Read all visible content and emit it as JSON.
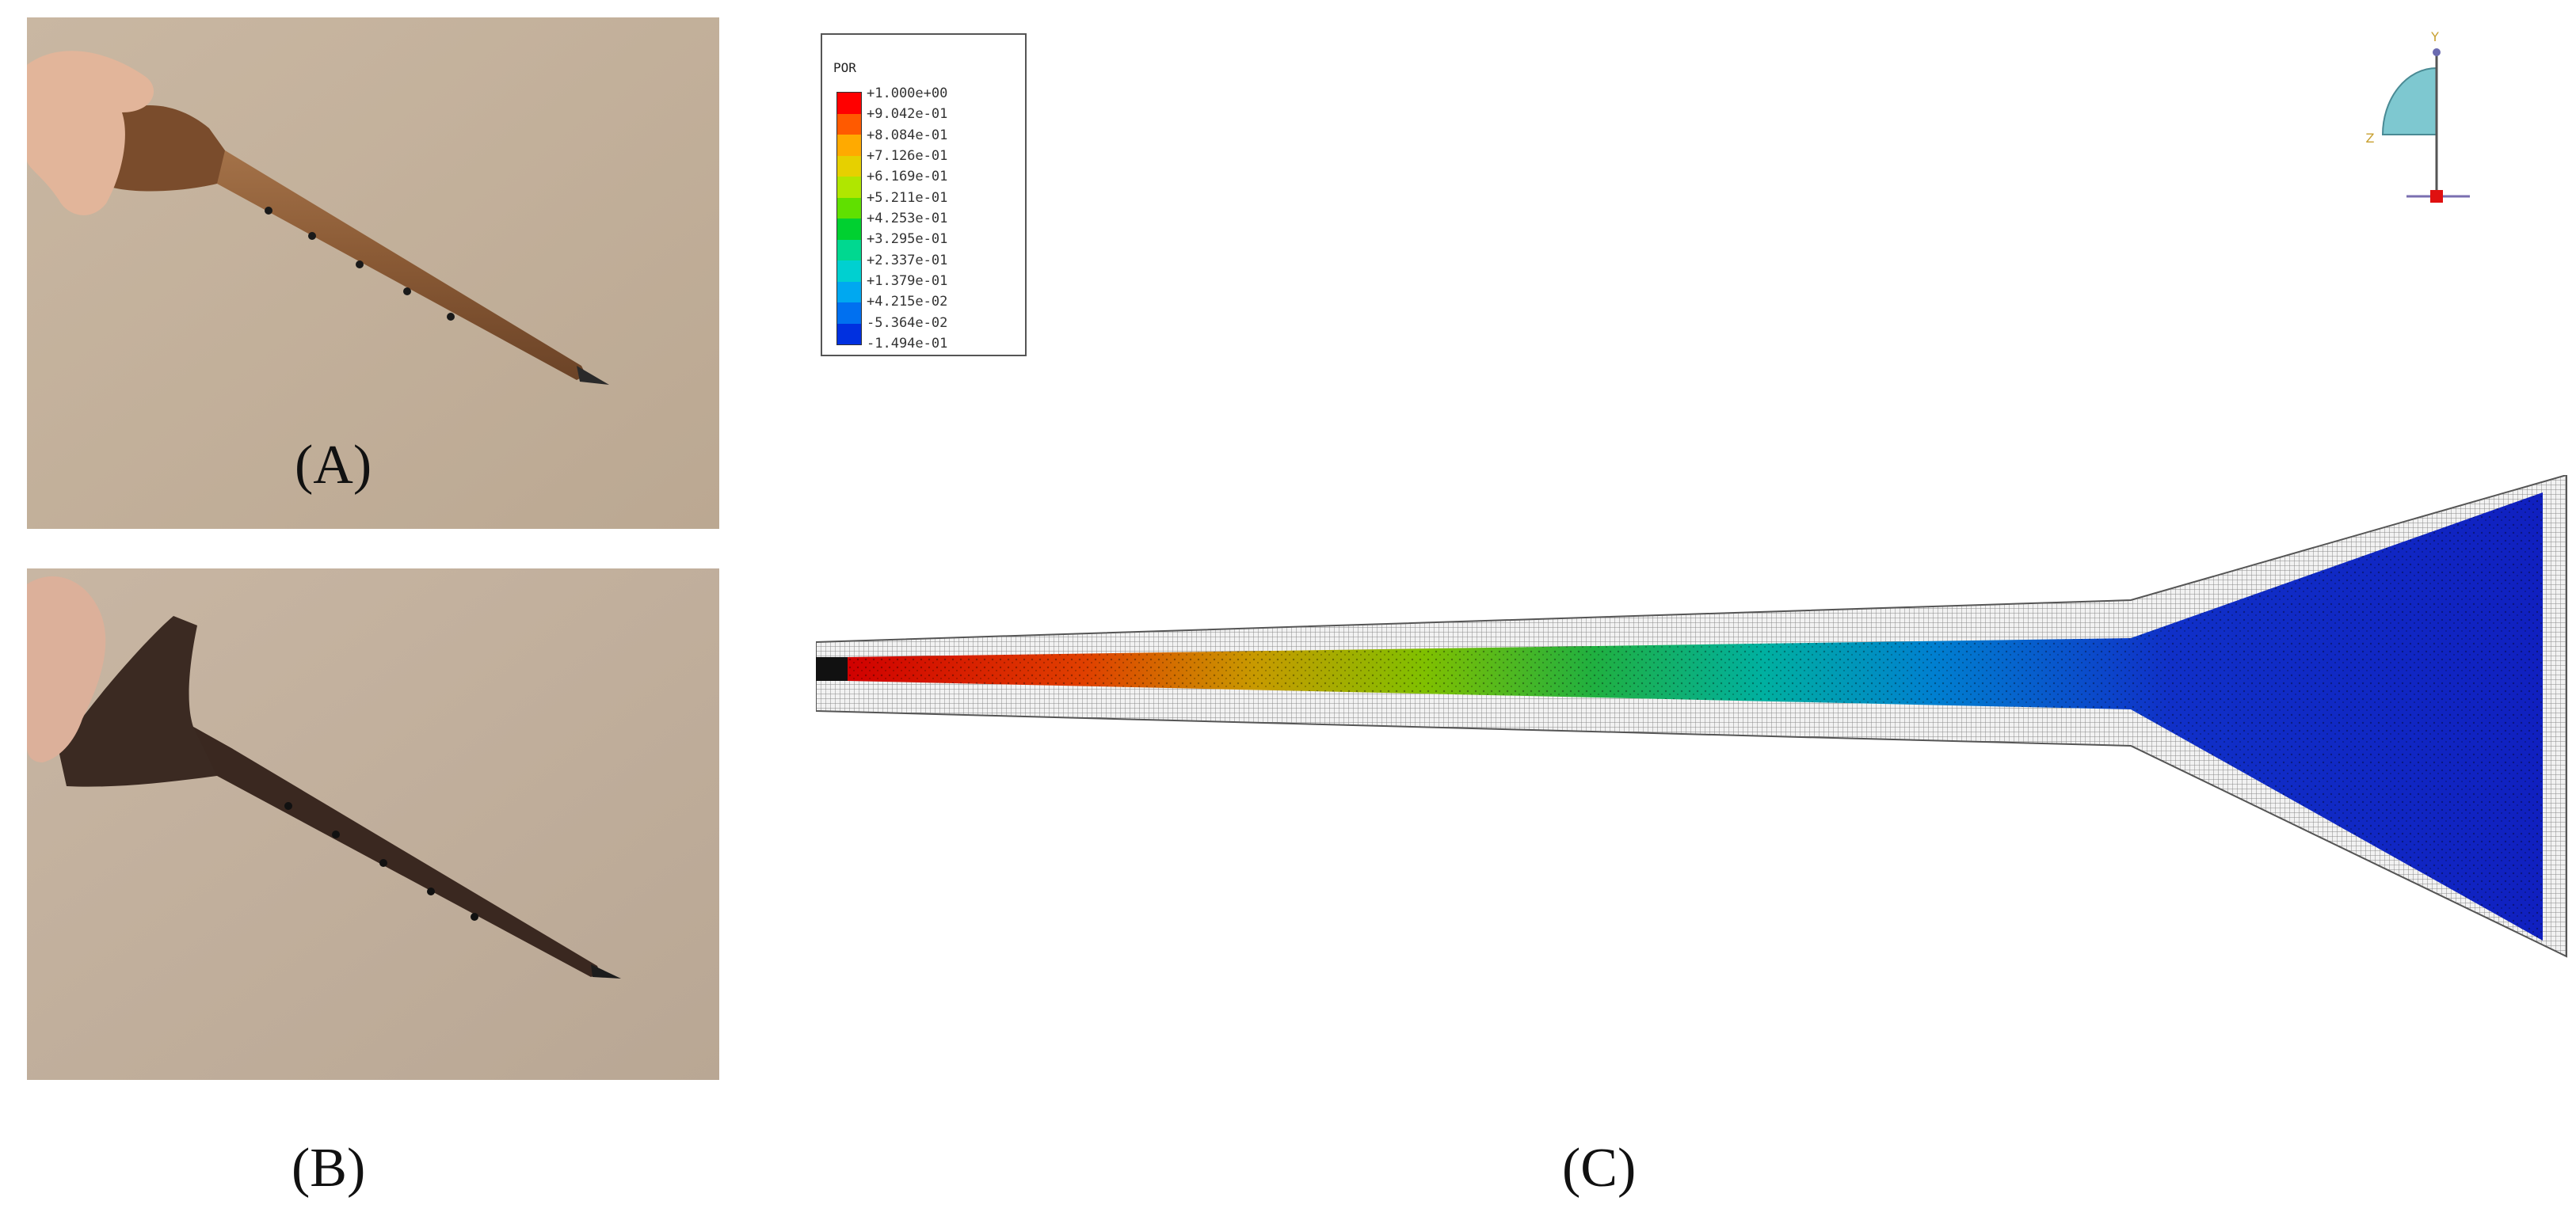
{
  "panels": {
    "a_label": "(A)",
    "b_label": "(B)",
    "c_label": "(C)"
  },
  "photo_a": {
    "description_icon": "wooden-flute-photo-icon",
    "colors": {
      "background": "#c4b19b",
      "wood": "#8a5a35",
      "hand": "#e2b59a"
    }
  },
  "photo_b": {
    "description_icon": "dark-flute-photo-icon",
    "colors": {
      "background": "#c2b09c",
      "wood": "#3b2a22",
      "hand": "#dcb09a"
    }
  },
  "legend": {
    "title": "POR",
    "values": [
      "+1.000e+00",
      "+9.042e-01",
      "+8.084e-01",
      "+7.126e-01",
      "+6.169e-01",
      "+5.211e-01",
      "+4.253e-01",
      "+3.295e-01",
      "+2.337e-01",
      "+1.379e-01",
      "+4.215e-02",
      "-5.364e-02",
      "-1.494e-01"
    ],
    "colors": [
      "#ff0000",
      "#ff5a00",
      "#ffaa00",
      "#e6d000",
      "#b0e600",
      "#60e000",
      "#00d030",
      "#00d890",
      "#00d0d0",
      "#00a8f0",
      "#0070f0",
      "#0030e0"
    ]
  },
  "triad": {
    "y_label": "Y",
    "z_label": "Z",
    "colors": {
      "quarter": "#7ec8d0",
      "origin": "#e01010"
    }
  },
  "fea": {
    "mesh_color": "#9a9a9a",
    "fluid_gradient": [
      "#d00000",
      "#e05000",
      "#c8a000",
      "#80c000",
      "#20b040",
      "#00b0a0",
      "#0080d0",
      "#1020c0"
    ]
  }
}
